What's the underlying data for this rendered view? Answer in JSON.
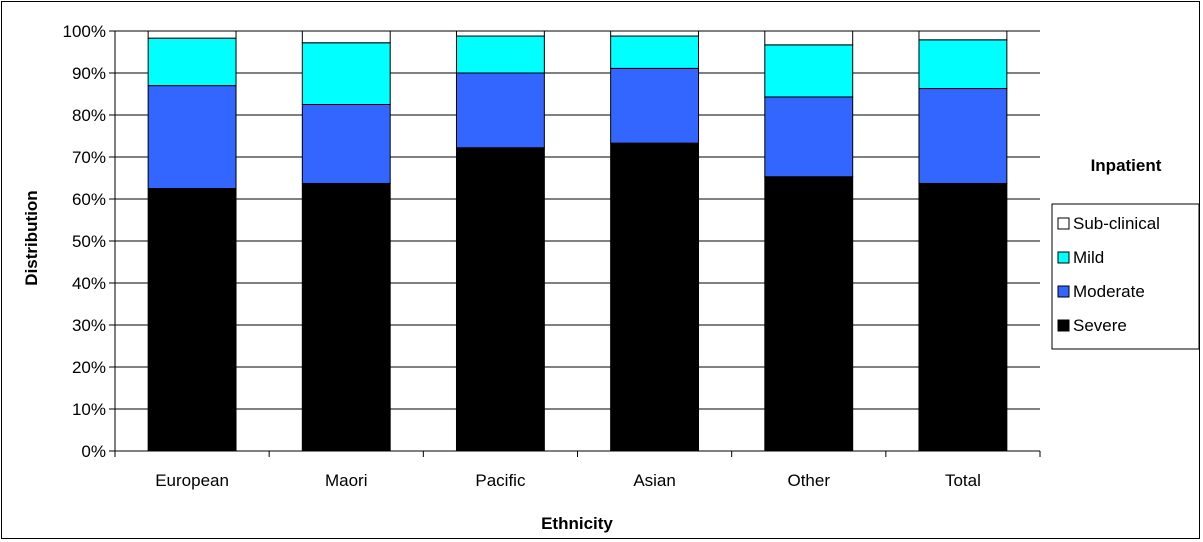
{
  "chart_data": {
    "type": "bar",
    "stacked": true,
    "title": "",
    "xlabel": "Ethnicity",
    "ylabel": "Distribution",
    "ylim": [
      0,
      100
    ],
    "y_ticks": [
      "0%",
      "10%",
      "20%",
      "30%",
      "40%",
      "50%",
      "60%",
      "70%",
      "80%",
      "90%",
      "100%"
    ],
    "categories": [
      "European",
      "Maori",
      "Pacific",
      "Asian",
      "Other",
      "Total"
    ],
    "legend_title": "Inpatient",
    "legend_position": "right",
    "grid": true,
    "series": [
      {
        "name": "Severe",
        "color": "#000000",
        "values": [
          62.5,
          63.7,
          72.2,
          73.3,
          65.3,
          63.7
        ]
      },
      {
        "name": "Moderate",
        "color": "#3366ff",
        "values": [
          24.5,
          18.8,
          17.8,
          17.8,
          19.0,
          22.6
        ]
      },
      {
        "name": "Mild",
        "color": "#00ffff",
        "values": [
          11.3,
          14.7,
          8.8,
          7.7,
          12.4,
          11.6
        ]
      },
      {
        "name": "Sub-clinical",
        "color": "#ffffff",
        "values": [
          1.7,
          2.8,
          1.2,
          1.2,
          3.3,
          2.1
        ]
      }
    ]
  }
}
